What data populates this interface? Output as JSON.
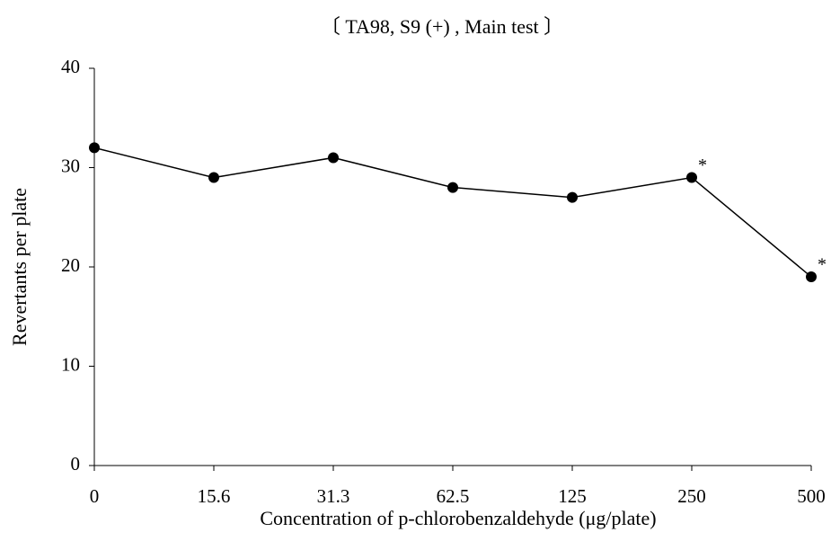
{
  "chart_data": {
    "type": "line",
    "title": "〔 TA98, S9 (+) , Main test 〕",
    "x_label": "Concentration of p-chlorobenzaldehyde (μg/plate)",
    "y_label": "Revertants per plate",
    "categories": [
      "0",
      "15.6",
      "31.3",
      "62.5",
      "125",
      "250",
      "500"
    ],
    "values": [
      32,
      29,
      31,
      28,
      27,
      29,
      19
    ],
    "color": "#000000",
    "ylim": [
      0,
      40
    ],
    "yticks": [
      0,
      10,
      20,
      30,
      40
    ],
    "grid": false,
    "annotations": [
      {
        "text": "*",
        "category": "250"
      },
      {
        "text": "*",
        "category": "500"
      }
    ]
  }
}
